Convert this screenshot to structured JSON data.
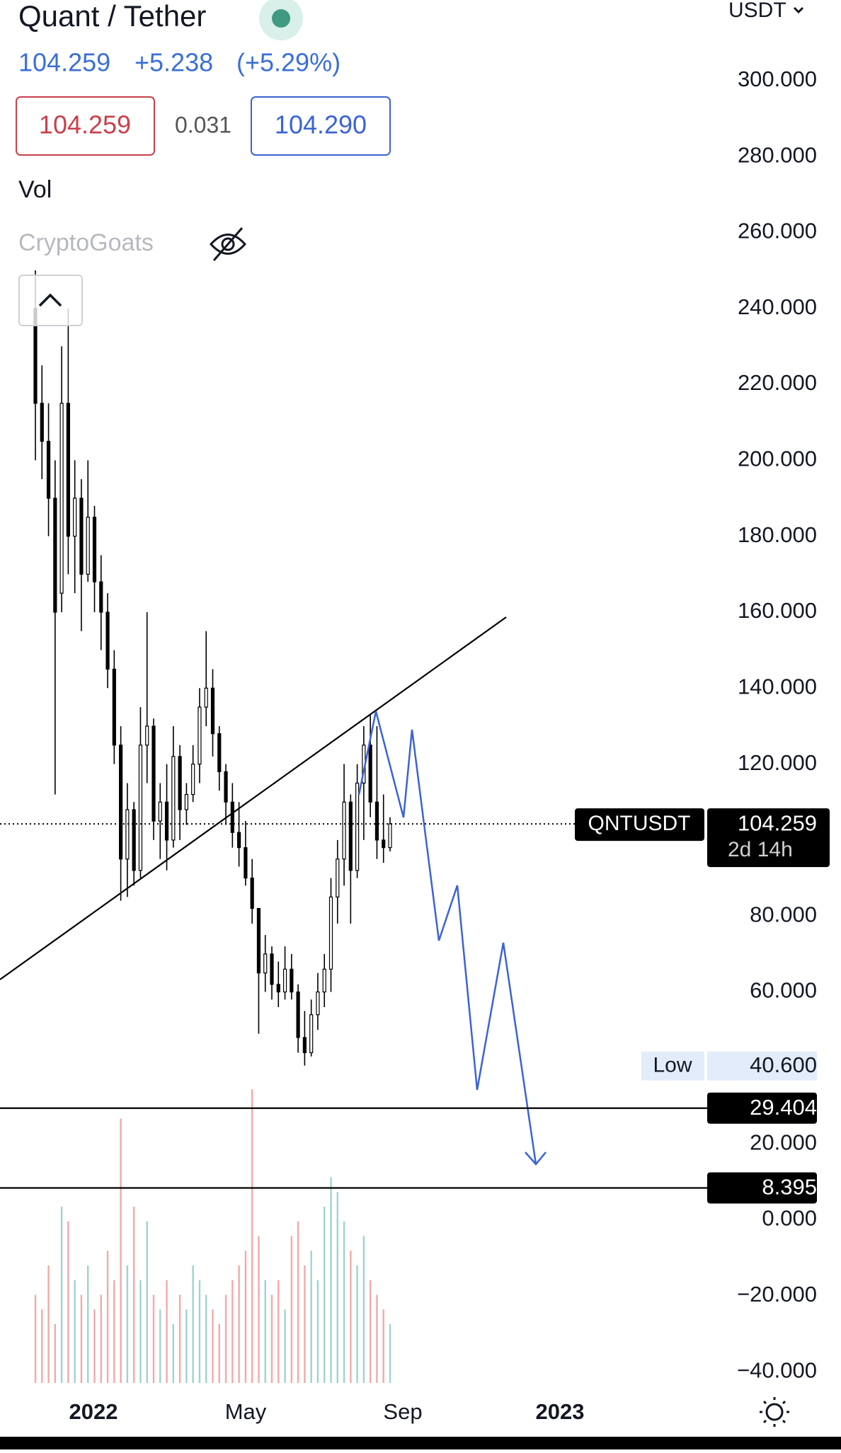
{
  "header": {
    "title": "Quant / Tether",
    "last": "104.259",
    "change": "+5.238",
    "change_pct": "(+5.29%)",
    "bid": "104.259",
    "spread": "0.031",
    "ask": "104.290",
    "currency": "USDT"
  },
  "indicators": {
    "volume": "Vol",
    "script": "CryptoGoats"
  },
  "chart_data": {
    "type": "candlestick",
    "candle_color": "#000000",
    "up_color": "#9fd3cf",
    "down_color": "#f2a9a9",
    "ylim": [
      -43.7,
      321.2
    ],
    "yticks": [
      {
        "value": 300,
        "label": "300.000"
      },
      {
        "value": 280,
        "label": "280.000"
      },
      {
        "value": 260,
        "label": "260.000"
      },
      {
        "value": 240,
        "label": "240.000"
      },
      {
        "value": 220,
        "label": "220.000"
      },
      {
        "value": 200,
        "label": "200.000"
      },
      {
        "value": 180,
        "label": "180.000"
      },
      {
        "value": 160,
        "label": "160.000"
      },
      {
        "value": 140,
        "label": "140.000"
      },
      {
        "value": 120,
        "label": "120.000"
      },
      {
        "value": 80,
        "label": "80.000"
      },
      {
        "value": 60,
        "label": "60.000"
      },
      {
        "value": 20,
        "label": "20.000"
      },
      {
        "value": 0,
        "label": "0.000"
      },
      {
        "value": -20,
        "label": "−20.000"
      },
      {
        "value": -40,
        "label": "−40.000"
      }
    ],
    "x_labels": [
      "2022",
      "May",
      "Sep",
      "2023"
    ],
    "candles": [
      [
        240,
        250,
        200,
        215
      ],
      [
        215,
        225,
        195,
        205
      ],
      [
        205,
        215,
        180,
        190
      ],
      [
        190,
        200,
        112,
        160
      ],
      [
        165,
        230,
        160,
        215
      ],
      [
        215,
        240,
        170,
        180
      ],
      [
        180,
        200,
        165,
        190
      ],
      [
        190,
        195,
        155,
        170
      ],
      [
        170,
        200,
        168,
        185
      ],
      [
        185,
        188,
        160,
        168
      ],
      [
        168,
        175,
        150,
        160
      ],
      [
        160,
        165,
        140,
        145
      ],
      [
        145,
        150,
        120,
        125
      ],
      [
        125,
        130,
        84,
        95
      ],
      [
        95,
        115,
        85,
        108
      ],
      [
        108,
        110,
        88,
        92
      ],
      [
        92,
        135,
        90,
        125
      ],
      [
        125,
        160,
        115,
        130
      ],
      [
        130,
        132,
        100,
        105
      ],
      [
        105,
        115,
        95,
        110
      ],
      [
        110,
        120,
        92,
        100
      ],
      [
        100,
        130,
        98,
        122
      ],
      [
        122,
        125,
        100,
        108
      ],
      [
        108,
        115,
        104,
        112
      ],
      [
        112,
        125,
        110,
        120
      ],
      [
        120,
        140,
        115,
        135
      ],
      [
        135,
        155,
        130,
        140
      ],
      [
        140,
        145,
        122,
        128
      ],
      [
        128,
        130,
        113,
        118
      ],
      [
        118,
        120,
        104,
        110
      ],
      [
        110,
        115,
        98,
        102
      ],
      [
        102,
        110,
        93,
        98
      ],
      [
        98,
        105,
        88,
        90
      ],
      [
        90,
        95,
        78,
        82
      ],
      [
        82,
        82,
        49,
        65
      ],
      [
        65,
        75,
        60,
        70
      ],
      [
        70,
        72,
        58,
        62
      ],
      [
        62,
        68,
        56,
        60
      ],
      [
        60,
        72,
        58,
        66
      ],
      [
        66,
        70,
        58,
        60
      ],
      [
        60,
        62,
        44,
        48
      ],
      [
        48,
        55,
        40.6,
        44
      ],
      [
        44,
        58,
        43,
        54
      ],
      [
        54,
        65,
        50,
        60
      ],
      [
        60,
        70,
        56,
        66
      ],
      [
        66,
        90,
        60,
        85
      ],
      [
        85,
        100,
        78,
        95
      ],
      [
        95,
        120,
        88,
        110
      ],
      [
        110,
        112,
        78,
        92
      ],
      [
        92,
        120,
        90,
        115
      ],
      [
        115,
        130,
        100,
        125
      ],
      [
        125,
        133,
        106,
        110
      ],
      [
        110,
        130,
        95,
        100
      ],
      [
        100,
        112,
        94,
        98
      ],
      [
        98,
        106,
        97,
        104.259
      ]
    ],
    "volume": [
      30,
      25,
      40,
      20,
      60,
      55,
      35,
      30,
      40,
      25,
      30,
      45,
      35,
      90,
      40,
      60,
      35,
      55,
      30,
      25,
      35,
      20,
      30,
      25,
      40,
      35,
      30,
      25,
      20,
      30,
      35,
      40,
      45,
      100,
      50,
      35,
      30,
      35,
      25,
      50,
      55,
      40,
      45,
      35,
      60,
      70,
      65,
      55,
      45,
      40,
      50,
      35,
      30,
      25,
      20
    ],
    "last": {
      "symbol": "QNTUSDT",
      "price": 104.259,
      "countdown": "2d 14h"
    },
    "low": {
      "label": "Low",
      "price": {
        "value": 40.6,
        "label": "40.600"
      }
    },
    "hlines": [
      29.404,
      8.395
    ]
  }
}
